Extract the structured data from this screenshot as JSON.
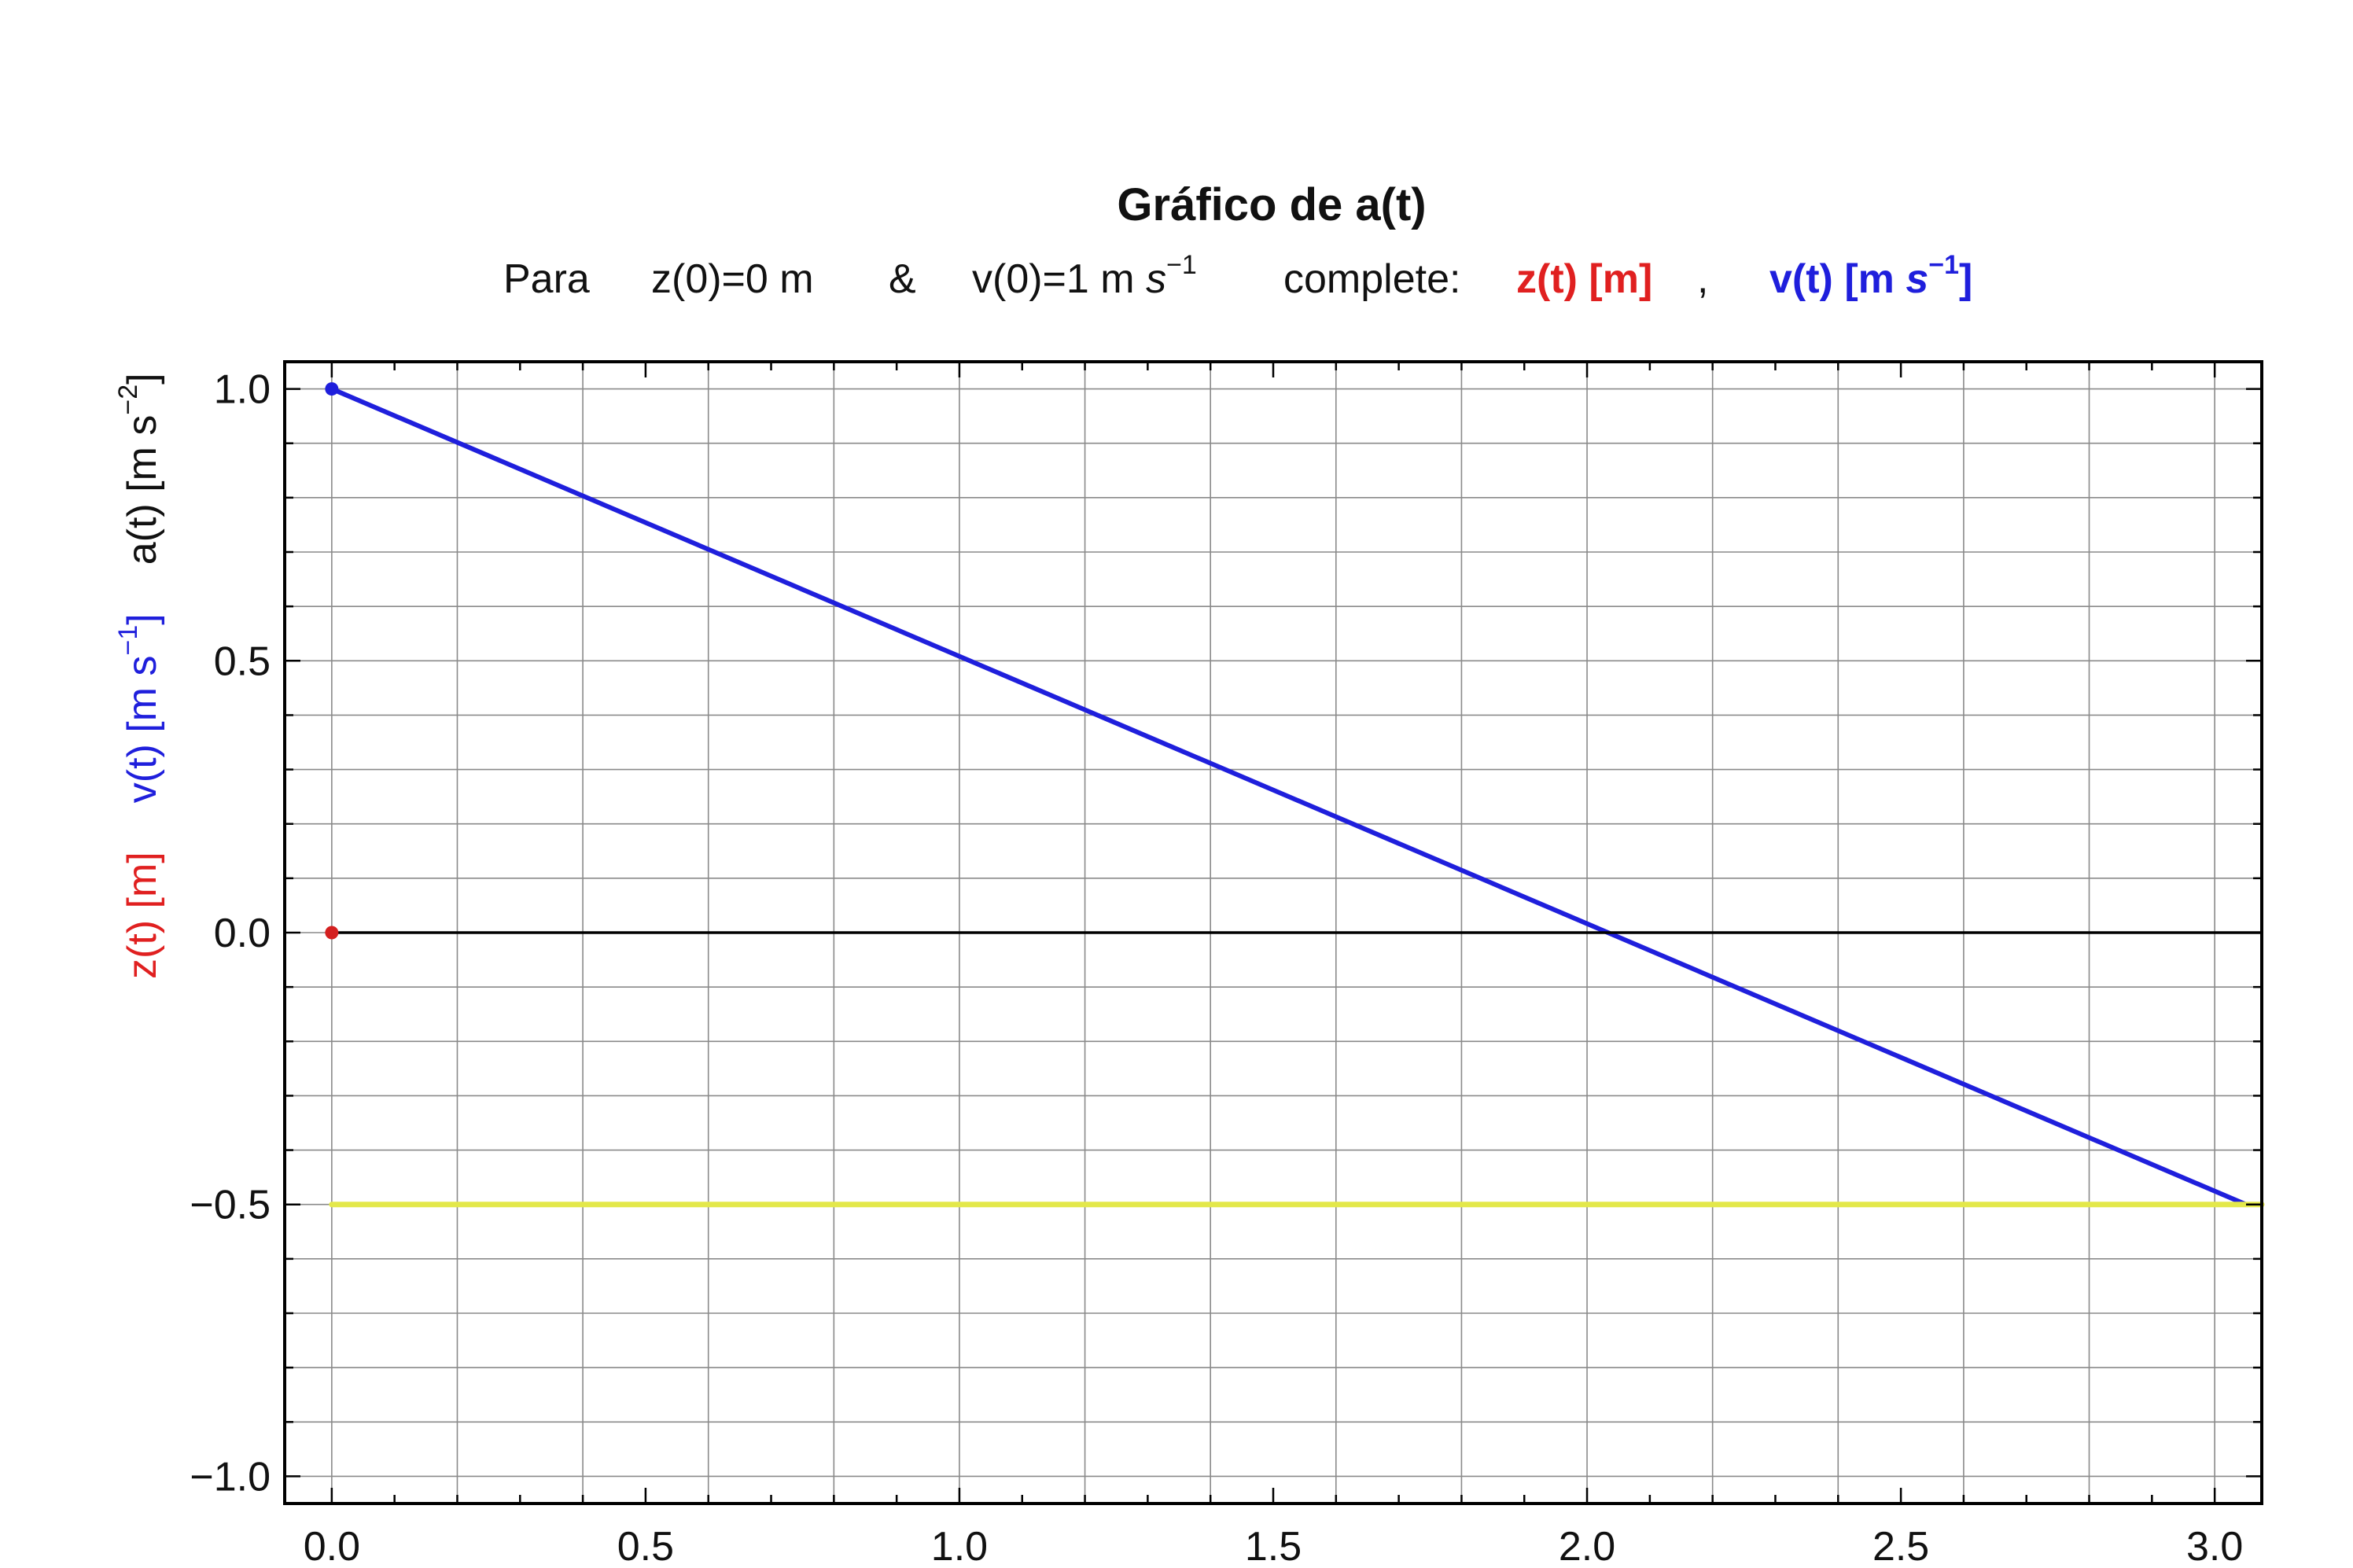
{
  "chart_data": {
    "type": "line",
    "title": "Gráfico de a(t)",
    "subtitle": {
      "para": "Para",
      "z0": "z(0)=0 m",
      "amp": "&",
      "v0_prefix": "v(0)=1 m ",
      "v0_s": "s",
      "v0_exp": "−1",
      "complete": "complete:",
      "z_label": "z(t) [m]",
      "comma": ",",
      "v_label_prefix": "v(t) [m ",
      "v_label_s": "s",
      "v_label_exp": "−1",
      "v_label_close": "]"
    },
    "ylabel": {
      "z_part": "z(t) [m]",
      "v_part_prefix": "v(t) [m s",
      "v_part_exp": "−1",
      "v_part_close": "]",
      "a_part_prefix": "a(t) [m s",
      "a_part_exp": "−2",
      "a_part_close": "]"
    },
    "xlim": [
      -0.075,
      3.075
    ],
    "ylim": [
      -1.05,
      1.05
    ],
    "x_ticks": [
      0.0,
      0.5,
      1.0,
      1.5,
      2.0,
      2.5,
      3.0
    ],
    "x_tick_labels": [
      "0.0",
      "0.5",
      "1.0",
      "1.5",
      "2.0",
      "2.5",
      "3.0"
    ],
    "y_ticks": [
      -1.0,
      -0.5,
      0.0,
      0.5,
      1.0
    ],
    "y_tick_labels": [
      "−1.0",
      "−0.5",
      "0.0",
      "0.5",
      "1.0"
    ],
    "x_grid_step": 0.2,
    "y_grid_step": 0.1,
    "grid": true,
    "series": [
      {
        "color": "#1f1fdc",
        "x": [
          0.0,
          3.05
        ],
        "y": [
          1.0,
          -0.5
        ]
      },
      {
        "color": "#e3e84a",
        "x": [
          0.0,
          3.075
        ],
        "y": [
          -0.5,
          -0.5
        ]
      },
      {
        "color": "#000000",
        "x": [
          0.0,
          3.075
        ],
        "y": [
          0.0,
          0.0
        ]
      }
    ],
    "markers": [
      {
        "color": "#1f1fdc",
        "x": 0.0,
        "y": 1.0
      },
      {
        "color": "#d42020",
        "x": 0.0,
        "y": 0.0
      }
    ],
    "colors": {
      "z": "#e02020",
      "v": "#1f1fdc",
      "a": "#111111"
    }
  }
}
